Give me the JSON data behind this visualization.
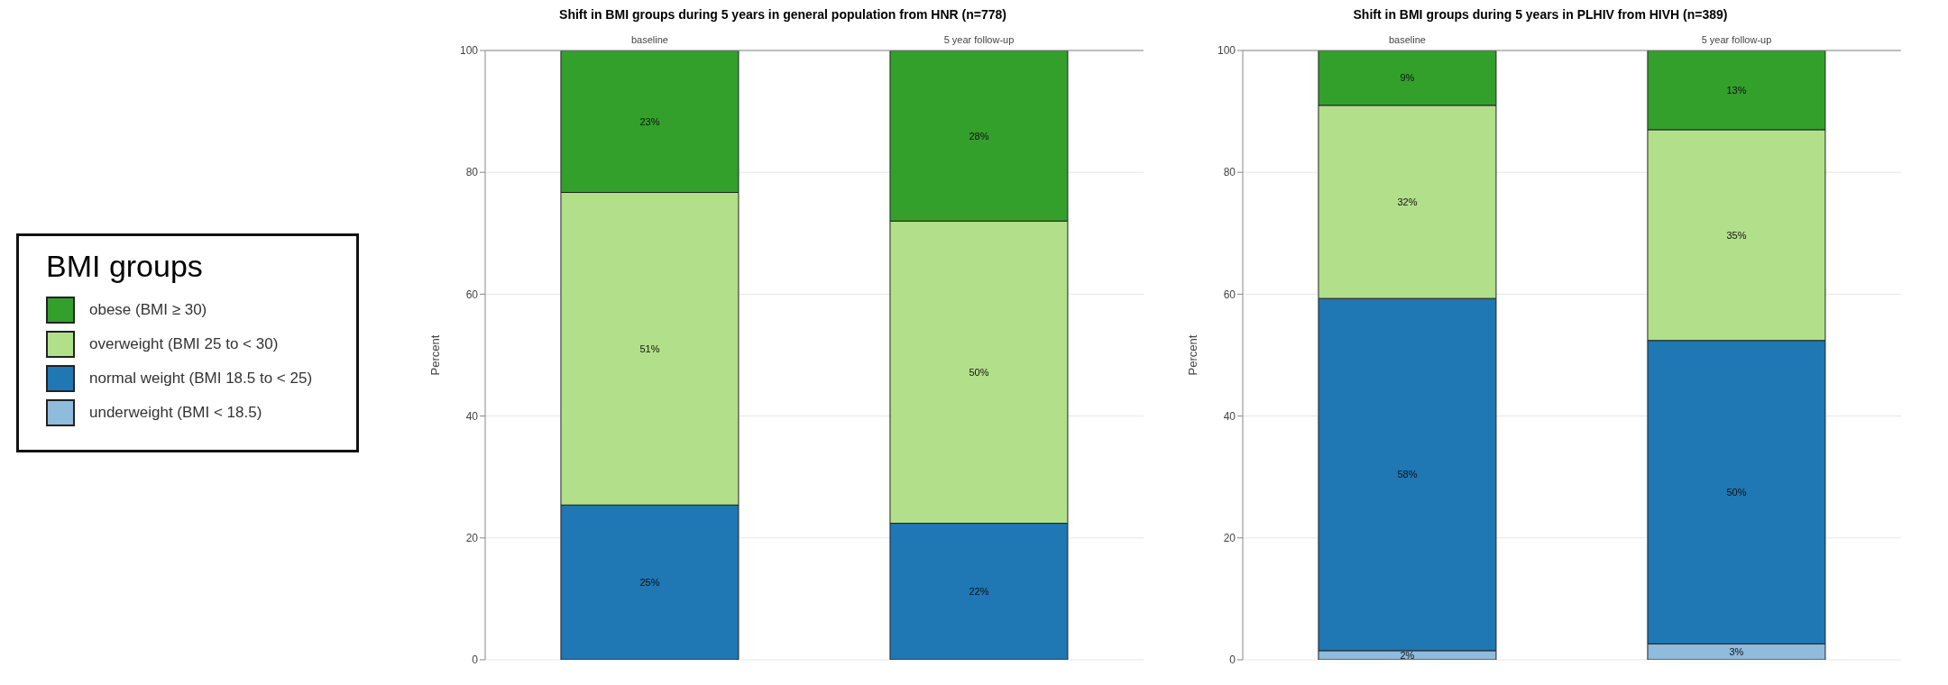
{
  "chart_data": [
    {
      "type": "bar",
      "stacked": true,
      "title": "Shift in BMI groups during 5 years in general population from HNR (n=778)",
      "ylabel": "Percent",
      "categories": [
        "baseline",
        "5 year follow-up"
      ],
      "ylim": [
        0,
        100
      ],
      "yticks": [
        0,
        20,
        40,
        60,
        80,
        100
      ],
      "grid": "y",
      "legend": "left",
      "legend_title": "BMI groups",
      "series": [
        {
          "name": "underweight (BMI < 18.5)",
          "color": "#8fbbdc",
          "values": [
            null,
            null
          ]
        },
        {
          "name": "normal weight (BMI 18.5 to < 25)",
          "color": "#1f77b4",
          "values": [
            25.4,
            22.4
          ],
          "value_labels": [
            "25%",
            "22%"
          ]
        },
        {
          "name": "overweight (BMI 25 to < 30)",
          "color": "#b2df8a",
          "values": [
            51.3,
            49.6
          ],
          "value_labels": [
            "51%",
            "50%"
          ]
        },
        {
          "name": "obese (BMI ≥ 30)",
          "color": "#33a02c",
          "values": [
            23.3,
            28
          ],
          "value_labels": [
            "23%",
            "28%"
          ]
        }
      ]
    },
    {
      "type": "bar",
      "stacked": true,
      "title": "Shift in BMI groups during 5 years in PLHIV from HIVH (n=389)",
      "ylabel": "Percent",
      "categories": [
        "baseline",
        "5 year follow-up"
      ],
      "ylim": [
        0,
        100
      ],
      "yticks": [
        0,
        20,
        40,
        60,
        80,
        100
      ],
      "grid": "y",
      "series": [
        {
          "color": "#8fbbdc",
          "values": [
            1.5,
            2.6
          ],
          "value_labels": [
            "2%",
            "3%"
          ]
        },
        {
          "color": "#1f77b4",
          "values": [
            57.8,
            49.8
          ],
          "value_labels": [
            "58%",
            "50%"
          ]
        },
        {
          "color": "#b2df8a",
          "values": [
            31.7,
            34.6
          ],
          "value_labels": [
            "32%",
            "35%"
          ]
        },
        {
          "color": "#33a02c",
          "values": [
            9,
            13
          ],
          "value_labels": [
            "9%",
            "13%"
          ]
        }
      ]
    }
  ]
}
